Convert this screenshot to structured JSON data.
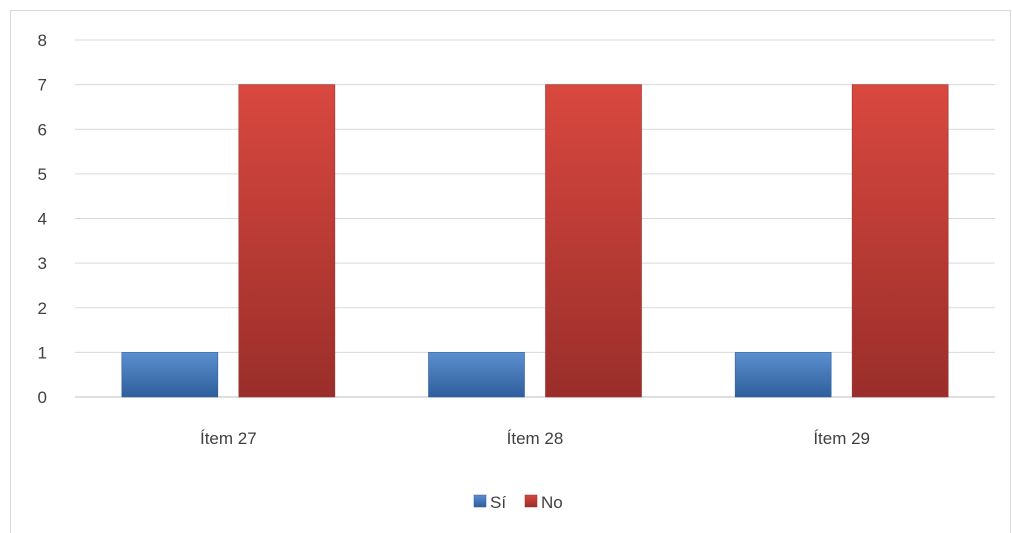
{
  "chart_data": {
    "type": "bar",
    "title": "",
    "xlabel": "",
    "ylabel": "",
    "categories": [
      "Ítem 27",
      "Ítem 28",
      "Ítem 29"
    ],
    "series": [
      {
        "name": "Sí",
        "values": [
          1,
          1,
          1
        ],
        "color": "#4F81BD"
      },
      {
        "name": "No",
        "values": [
          7,
          7,
          7
        ],
        "color": "#C0504D"
      }
    ],
    "ylim": [
      0,
      8
    ],
    "yticks": [
      "0",
      "1",
      "2",
      "3",
      "4",
      "5",
      "6",
      "7",
      "8"
    ],
    "grid": true,
    "legend_position": "bottom"
  }
}
